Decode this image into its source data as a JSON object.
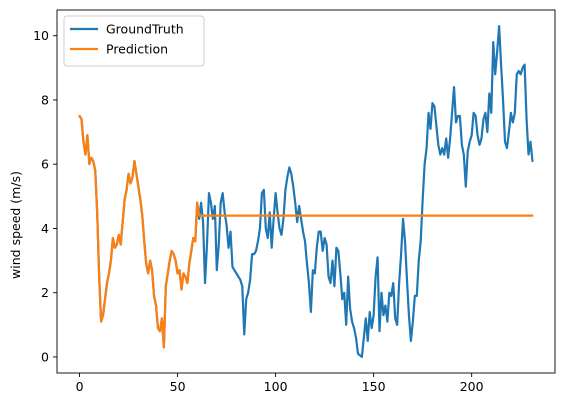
{
  "chart_data": {
    "type": "line",
    "title": "",
    "xlabel": "",
    "ylabel": "wind speed (m/s)",
    "xlim": [
      -11.5,
      242.5
    ],
    "ylim": [
      -0.5,
      10.8
    ],
    "xticks": [
      0,
      50,
      100,
      150,
      200
    ],
    "yticks": [
      0,
      2,
      4,
      6,
      8,
      10
    ],
    "grid": false,
    "legend_position": "top-left",
    "series": [
      {
        "name": "GroundTruth",
        "color": "#1f77b4",
        "points": [
          [
            0,
            7.5
          ],
          [
            1,
            7.4
          ],
          [
            2,
            6.7
          ],
          [
            3,
            6.3
          ],
          [
            4,
            6.9
          ],
          [
            5,
            6.0
          ],
          [
            6,
            6.2
          ],
          [
            7,
            6.1
          ],
          [
            8,
            5.8
          ],
          [
            9,
            4.5
          ],
          [
            10,
            2.5
          ],
          [
            11,
            1.1
          ],
          [
            12,
            1.3
          ],
          [
            13,
            1.8
          ],
          [
            14,
            2.3
          ],
          [
            15,
            2.6
          ],
          [
            16,
            3.0
          ],
          [
            17,
            3.7
          ],
          [
            18,
            3.4
          ],
          [
            19,
            3.5
          ],
          [
            20,
            3.8
          ],
          [
            21,
            3.5
          ],
          [
            22,
            4.2
          ],
          [
            23,
            4.9
          ],
          [
            24,
            5.2
          ],
          [
            25,
            5.7
          ],
          [
            26,
            5.4
          ],
          [
            27,
            5.6
          ],
          [
            28,
            6.1
          ],
          [
            29,
            5.7
          ],
          [
            30,
            5.3
          ],
          [
            31,
            4.9
          ],
          [
            32,
            4.4
          ],
          [
            33,
            3.6
          ],
          [
            34,
            2.9
          ],
          [
            35,
            2.6
          ],
          [
            36,
            3.0
          ],
          [
            37,
            2.7
          ],
          [
            38,
            1.9
          ],
          [
            39,
            1.6
          ],
          [
            40,
            0.9
          ],
          [
            41,
            0.8
          ],
          [
            42,
            1.2
          ],
          [
            43,
            0.3
          ],
          [
            44,
            2.2
          ],
          [
            45,
            2.6
          ],
          [
            46,
            3.0
          ],
          [
            47,
            3.3
          ],
          [
            48,
            3.2
          ],
          [
            49,
            3.0
          ],
          [
            50,
            2.6
          ],
          [
            51,
            2.7
          ],
          [
            52,
            2.1
          ],
          [
            53,
            2.6
          ],
          [
            54,
            2.5
          ],
          [
            55,
            2.3
          ],
          [
            56,
            2.9
          ],
          [
            57,
            3.3
          ],
          [
            58,
            3.7
          ],
          [
            59,
            3.6
          ],
          [
            60,
            4.8
          ],
          [
            61,
            4.3
          ],
          [
            62,
            4.8
          ],
          [
            63,
            4.2
          ],
          [
            64,
            2.3
          ],
          [
            65,
            3.5
          ],
          [
            66,
            5.1
          ],
          [
            67,
            4.8
          ],
          [
            68,
            4.3
          ],
          [
            69,
            4.7
          ],
          [
            70,
            2.7
          ],
          [
            71,
            3.5
          ],
          [
            72,
            4.8
          ],
          [
            73,
            5.1
          ],
          [
            74,
            4.5
          ],
          [
            75,
            4.1
          ],
          [
            76,
            3.4
          ],
          [
            77,
            3.9
          ],
          [
            78,
            2.8
          ],
          [
            79,
            2.7
          ],
          [
            80,
            2.6
          ],
          [
            81,
            2.5
          ],
          [
            82,
            2.4
          ],
          [
            83,
            2.2
          ],
          [
            84,
            0.7
          ],
          [
            85,
            1.8
          ],
          [
            86,
            2.0
          ],
          [
            87,
            2.4
          ],
          [
            88,
            3.2
          ],
          [
            89,
            3.2
          ],
          [
            90,
            3.3
          ],
          [
            91,
            3.6
          ],
          [
            92,
            4.0
          ],
          [
            93,
            5.1
          ],
          [
            94,
            5.2
          ],
          [
            95,
            4.0
          ],
          [
            96,
            3.7
          ],
          [
            97,
            4.5
          ],
          [
            98,
            3.4
          ],
          [
            99,
            4.3
          ],
          [
            100,
            5.1
          ],
          [
            101,
            4.5
          ],
          [
            102,
            4.0
          ],
          [
            103,
            3.8
          ],
          [
            104,
            4.3
          ],
          [
            105,
            5.2
          ],
          [
            106,
            5.6
          ],
          [
            107,
            5.9
          ],
          [
            108,
            5.7
          ],
          [
            109,
            5.3
          ],
          [
            110,
            4.8
          ],
          [
            111,
            4.2
          ],
          [
            112,
            4.7
          ],
          [
            113,
            4.3
          ],
          [
            114,
            3.9
          ],
          [
            115,
            3.6
          ],
          [
            116,
            2.9
          ],
          [
            117,
            2.3
          ],
          [
            118,
            1.4
          ],
          [
            119,
            2.7
          ],
          [
            120,
            2.6
          ],
          [
            121,
            3.4
          ],
          [
            122,
            3.9
          ],
          [
            123,
            3.9
          ],
          [
            124,
            3.3
          ],
          [
            125,
            3.7
          ],
          [
            126,
            3.5
          ],
          [
            127,
            2.5
          ],
          [
            128,
            2.3
          ],
          [
            129,
            3.0
          ],
          [
            130,
            2.2
          ],
          [
            131,
            3.4
          ],
          [
            132,
            3.3
          ],
          [
            133,
            2.6
          ],
          [
            134,
            1.8
          ],
          [
            135,
            2.0
          ],
          [
            136,
            1.0
          ],
          [
            137,
            2.5
          ],
          [
            138,
            1.5
          ],
          [
            139,
            1.1
          ],
          [
            140,
            0.9
          ],
          [
            141,
            0.6
          ],
          [
            142,
            0.1
          ],
          [
            143,
            0.05
          ],
          [
            144,
            0.0
          ],
          [
            145,
            0.6
          ],
          [
            146,
            1.2
          ],
          [
            147,
            0.5
          ],
          [
            148,
            1.4
          ],
          [
            149,
            0.9
          ],
          [
            150,
            1.3
          ],
          [
            151,
            2.5
          ],
          [
            152,
            3.1
          ],
          [
            153,
            0.8
          ],
          [
            154,
            2.0
          ],
          [
            155,
            1.3
          ],
          [
            156,
            1.6
          ],
          [
            157,
            1.1
          ],
          [
            158,
            2.0
          ],
          [
            159,
            1.9
          ],
          [
            160,
            2.3
          ],
          [
            161,
            1.2
          ],
          [
            162,
            1.0
          ],
          [
            163,
            2.3
          ],
          [
            164,
            3.2
          ],
          [
            165,
            4.3
          ],
          [
            166,
            3.6
          ],
          [
            167,
            2.4
          ],
          [
            168,
            1.3
          ],
          [
            169,
            0.5
          ],
          [
            170,
            1.1
          ],
          [
            171,
            1.9
          ],
          [
            172,
            1.9
          ],
          [
            173,
            3.0
          ],
          [
            174,
            3.6
          ],
          [
            175,
            4.9
          ],
          [
            176,
            6.0
          ],
          [
            177,
            6.5
          ],
          [
            178,
            7.6
          ],
          [
            179,
            7.1
          ],
          [
            180,
            7.9
          ],
          [
            181,
            7.8
          ],
          [
            182,
            7.2
          ],
          [
            183,
            6.6
          ],
          [
            184,
            6.3
          ],
          [
            185,
            6.5
          ],
          [
            186,
            6.3
          ],
          [
            187,
            6.8
          ],
          [
            188,
            6.2
          ],
          [
            189,
            6.8
          ],
          [
            190,
            7.6
          ],
          [
            191,
            8.4
          ],
          [
            192,
            7.3
          ],
          [
            193,
            7.5
          ],
          [
            194,
            7.5
          ],
          [
            195,
            6.6
          ],
          [
            196,
            6.3
          ],
          [
            197,
            5.3
          ],
          [
            198,
            6.4
          ],
          [
            199,
            6.7
          ],
          [
            200,
            6.9
          ],
          [
            201,
            7.6
          ],
          [
            202,
            7.5
          ],
          [
            203,
            6.9
          ],
          [
            204,
            6.6
          ],
          [
            205,
            6.8
          ],
          [
            206,
            7.4
          ],
          [
            207,
            7.6
          ],
          [
            208,
            7.0
          ],
          [
            209,
            8.2
          ],
          [
            210,
            7.6
          ],
          [
            211,
            9.8
          ],
          [
            212,
            8.8
          ],
          [
            213,
            9.5
          ],
          [
            214,
            10.3
          ],
          [
            215,
            9.1
          ],
          [
            216,
            8.0
          ],
          [
            217,
            6.7
          ],
          [
            218,
            6.5
          ],
          [
            219,
            7.0
          ],
          [
            220,
            7.6
          ],
          [
            221,
            7.3
          ],
          [
            222,
            7.6
          ],
          [
            223,
            8.8
          ],
          [
            224,
            8.9
          ],
          [
            225,
            8.8
          ],
          [
            226,
            9.0
          ],
          [
            227,
            9.1
          ],
          [
            228,
            7.4
          ],
          [
            229,
            6.3
          ],
          [
            230,
            6.7
          ],
          [
            231,
            6.1
          ]
        ]
      },
      {
        "name": "Prediction",
        "color": "#ff7f0e",
        "points": [
          [
            0,
            7.5
          ],
          [
            1,
            7.4
          ],
          [
            2,
            6.7
          ],
          [
            3,
            6.3
          ],
          [
            4,
            6.9
          ],
          [
            5,
            6.0
          ],
          [
            6,
            6.2
          ],
          [
            7,
            6.1
          ],
          [
            8,
            5.8
          ],
          [
            9,
            4.5
          ],
          [
            10,
            2.5
          ],
          [
            11,
            1.1
          ],
          [
            12,
            1.3
          ],
          [
            13,
            1.8
          ],
          [
            14,
            2.3
          ],
          [
            15,
            2.6
          ],
          [
            16,
            3.0
          ],
          [
            17,
            3.7
          ],
          [
            18,
            3.4
          ],
          [
            19,
            3.5
          ],
          [
            20,
            3.8
          ],
          [
            21,
            3.5
          ],
          [
            22,
            4.2
          ],
          [
            23,
            4.9
          ],
          [
            24,
            5.2
          ],
          [
            25,
            5.7
          ],
          [
            26,
            5.4
          ],
          [
            27,
            5.6
          ],
          [
            28,
            6.1
          ],
          [
            29,
            5.7
          ],
          [
            30,
            5.3
          ],
          [
            31,
            4.9
          ],
          [
            32,
            4.4
          ],
          [
            33,
            3.6
          ],
          [
            34,
            2.9
          ],
          [
            35,
            2.6
          ],
          [
            36,
            3.0
          ],
          [
            37,
            2.7
          ],
          [
            38,
            1.9
          ],
          [
            39,
            1.6
          ],
          [
            40,
            0.9
          ],
          [
            41,
            0.8
          ],
          [
            42,
            1.2
          ],
          [
            43,
            0.3
          ],
          [
            44,
            2.2
          ],
          [
            45,
            2.6
          ],
          [
            46,
            3.0
          ],
          [
            47,
            3.3
          ],
          [
            48,
            3.2
          ],
          [
            49,
            3.0
          ],
          [
            50,
            2.6
          ],
          [
            51,
            2.7
          ],
          [
            52,
            2.1
          ],
          [
            53,
            2.6
          ],
          [
            54,
            2.5
          ],
          [
            55,
            2.3
          ],
          [
            56,
            2.9
          ],
          [
            57,
            3.3
          ],
          [
            58,
            3.7
          ],
          [
            59,
            3.6
          ],
          [
            60,
            4.8
          ],
          [
            61,
            4.4
          ],
          [
            231,
            4.4
          ]
        ]
      }
    ]
  }
}
